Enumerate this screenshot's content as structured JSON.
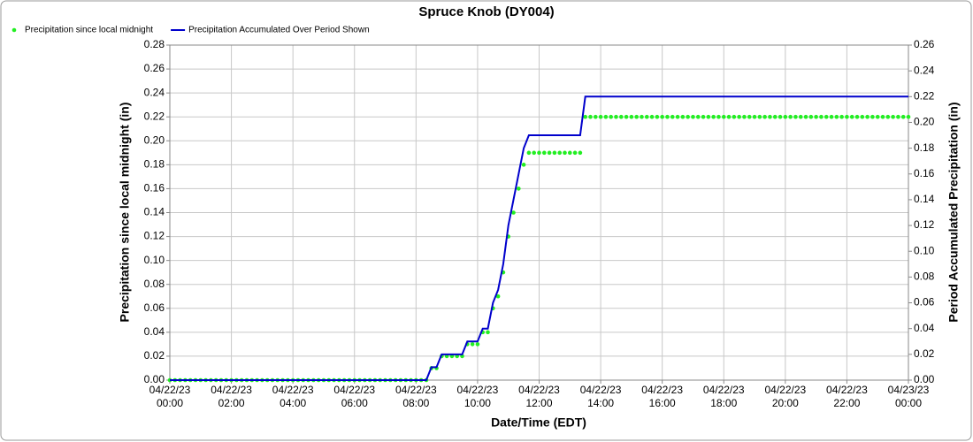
{
  "chart_data": {
    "type": "line",
    "title": "Spruce Knob (DY004)",
    "x_label": "Date/Time (EDT)",
    "y_label": "Precipitation since local midnight (in)",
    "y2_label": "Period Accumulated Precipitation (in)",
    "legend": "top-left",
    "grid": true,
    "xlim": [
      "04/22/23 00:00",
      "04/23/23 00:00"
    ],
    "xticks": [
      "04/22/23 00:00",
      "04/22/23 02:00",
      "04/22/23 04:00",
      "04/22/23 06:00",
      "04/22/23 08:00",
      "04/22/23 10:00",
      "04/22/23 12:00",
      "04/22/23 14:00",
      "04/22/23 16:00",
      "04/22/23 18:00",
      "04/22/23 20:00",
      "04/22/23 22:00",
      "04/23/23 00:00"
    ],
    "ylim": [
      0,
      0.28
    ],
    "yticks": [
      {
        "value": 0,
        "label": "0.00"
      },
      {
        "value": 0.02,
        "label": "0.02"
      },
      {
        "value": 0.04,
        "label": "0.04"
      },
      {
        "value": 0.06,
        "label": "0.06"
      },
      {
        "value": 0.08,
        "label": "0.08"
      },
      {
        "value": 0.1,
        "label": "0.10"
      },
      {
        "value": 0.12,
        "label": "0.12"
      },
      {
        "value": 0.14,
        "label": "0.14"
      },
      {
        "value": 0.16,
        "label": "0.16"
      },
      {
        "value": 0.18,
        "label": "0.18"
      },
      {
        "value": 0.2,
        "label": "0.20"
      },
      {
        "value": 0.22,
        "label": "0.22"
      },
      {
        "value": 0.24,
        "label": "0.24"
      },
      {
        "value": 0.26,
        "label": "0.26"
      },
      {
        "value": 0.28,
        "label": "0.28"
      }
    ],
    "y2lim": [
      0,
      0.26
    ],
    "y2ticks": [
      {
        "value": 0,
        "label": "0.00"
      },
      {
        "value": 0.02,
        "label": "0.02"
      },
      {
        "value": 0.04,
        "label": "0.04"
      },
      {
        "value": 0.06,
        "label": "0.06"
      },
      {
        "value": 0.08,
        "label": "0.08"
      },
      {
        "value": 0.1,
        "label": "0.10"
      },
      {
        "value": 0.12,
        "label": "0.12"
      },
      {
        "value": 0.14,
        "label": "0.14"
      },
      {
        "value": 0.16,
        "label": "0.16"
      },
      {
        "value": 0.18,
        "label": "0.18"
      },
      {
        "value": 0.2,
        "label": "0.20"
      },
      {
        "value": 0.22,
        "label": "0.22"
      },
      {
        "value": 0.24,
        "label": "0.24"
      },
      {
        "value": 0.26,
        "label": "0.26"
      }
    ],
    "x": [
      "04/22/23 00:00",
      "04/22/23 00:10",
      "04/22/23 00:20",
      "04/22/23 00:30",
      "04/22/23 00:40",
      "04/22/23 00:50",
      "04/22/23 01:00",
      "04/22/23 01:10",
      "04/22/23 01:20",
      "04/22/23 01:30",
      "04/22/23 01:40",
      "04/22/23 01:50",
      "04/22/23 02:00",
      "04/22/23 02:10",
      "04/22/23 02:20",
      "04/22/23 02:30",
      "04/22/23 02:40",
      "04/22/23 02:50",
      "04/22/23 03:00",
      "04/22/23 03:10",
      "04/22/23 03:20",
      "04/22/23 03:30",
      "04/22/23 03:40",
      "04/22/23 03:50",
      "04/22/23 04:00",
      "04/22/23 04:10",
      "04/22/23 04:20",
      "04/22/23 04:30",
      "04/22/23 04:40",
      "04/22/23 04:50",
      "04/22/23 05:00",
      "04/22/23 05:10",
      "04/22/23 05:20",
      "04/22/23 05:30",
      "04/22/23 05:40",
      "04/22/23 05:50",
      "04/22/23 06:00",
      "04/22/23 06:10",
      "04/22/23 06:20",
      "04/22/23 06:30",
      "04/22/23 06:40",
      "04/22/23 06:50",
      "04/22/23 07:00",
      "04/22/23 07:10",
      "04/22/23 07:20",
      "04/22/23 07:30",
      "04/22/23 07:40",
      "04/22/23 07:50",
      "04/22/23 08:00",
      "04/22/23 08:10",
      "04/22/23 08:20",
      "04/22/23 08:30",
      "04/22/23 08:40",
      "04/22/23 08:50",
      "04/22/23 09:00",
      "04/22/23 09:10",
      "04/22/23 09:20",
      "04/22/23 09:30",
      "04/22/23 09:40",
      "04/22/23 09:50",
      "04/22/23 10:00",
      "04/22/23 10:10",
      "04/22/23 10:20",
      "04/22/23 10:30",
      "04/22/23 10:40",
      "04/22/23 10:50",
      "04/22/23 11:00",
      "04/22/23 11:10",
      "04/22/23 11:20",
      "04/22/23 11:30",
      "04/22/23 11:40",
      "04/22/23 11:50",
      "04/22/23 12:00",
      "04/22/23 12:10",
      "04/22/23 12:20",
      "04/22/23 12:30",
      "04/22/23 12:40",
      "04/22/23 12:50",
      "04/22/23 13:00",
      "04/22/23 13:10",
      "04/22/23 13:20",
      "04/22/23 13:30",
      "04/22/23 13:40",
      "04/22/23 13:50",
      "04/22/23 14:00",
      "04/22/23 14:10",
      "04/22/23 14:20",
      "04/22/23 14:30",
      "04/22/23 14:40",
      "04/22/23 14:50",
      "04/22/23 15:00",
      "04/22/23 15:10",
      "04/22/23 15:20",
      "04/22/23 15:30",
      "04/22/23 15:40",
      "04/22/23 15:50",
      "04/22/23 16:00",
      "04/22/23 16:10",
      "04/22/23 16:20",
      "04/22/23 16:30",
      "04/22/23 16:40",
      "04/22/23 16:50",
      "04/22/23 17:00",
      "04/22/23 17:10",
      "04/22/23 17:20",
      "04/22/23 17:30",
      "04/22/23 17:40",
      "04/22/23 17:50",
      "04/22/23 18:00",
      "04/22/23 18:10",
      "04/22/23 18:20",
      "04/22/23 18:30",
      "04/22/23 18:40",
      "04/22/23 18:50",
      "04/22/23 19:00",
      "04/22/23 19:10",
      "04/22/23 19:20",
      "04/22/23 19:30",
      "04/22/23 19:40",
      "04/22/23 19:50",
      "04/22/23 20:00",
      "04/22/23 20:10",
      "04/22/23 20:20",
      "04/22/23 20:30",
      "04/22/23 20:40",
      "04/22/23 20:50",
      "04/22/23 21:00",
      "04/22/23 21:10",
      "04/22/23 21:20",
      "04/22/23 21:30",
      "04/22/23 21:40",
      "04/22/23 21:50",
      "04/22/23 22:00",
      "04/22/23 22:10",
      "04/22/23 22:20",
      "04/22/23 22:30",
      "04/22/23 22:40",
      "04/22/23 22:50",
      "04/22/23 23:00",
      "04/22/23 23:10",
      "04/22/23 23:20",
      "04/22/23 23:30",
      "04/22/23 23:40",
      "04/22/23 23:50",
      "04/23/23 00:00"
    ],
    "series": [
      {
        "name": "Precipitation since local midnight",
        "type": "scatter",
        "color": "#22ee22",
        "axis": "y",
        "values": [
          0,
          0,
          0,
          0,
          0,
          0,
          0,
          0,
          0,
          0,
          0,
          0,
          0,
          0,
          0,
          0,
          0,
          0,
          0,
          0,
          0,
          0,
          0,
          0,
          0,
          0,
          0,
          0,
          0,
          0,
          0,
          0,
          0,
          0,
          0,
          0,
          0,
          0,
          0,
          0,
          0,
          0,
          0,
          0,
          0,
          0,
          0,
          0,
          0,
          0,
          0,
          0.01,
          0.01,
          0.02,
          0.02,
          0.02,
          0.02,
          0.02,
          0.03,
          0.03,
          0.03,
          0.04,
          0.04,
          0.06,
          0.07,
          0.09,
          0.12,
          0.14,
          0.16,
          0.18,
          0.19,
          0.19,
          0.19,
          0.19,
          0.19,
          0.19,
          0.19,
          0.19,
          0.19,
          0.19,
          0.19,
          0.22,
          0.22,
          0.22,
          0.22,
          0.22,
          0.22,
          0.22,
          0.22,
          0.22,
          0.22,
          0.22,
          0.22,
          0.22,
          0.22,
          0.22,
          0.22,
          0.22,
          0.22,
          0.22,
          0.22,
          0.22,
          0.22,
          0.22,
          0.22,
          0.22,
          0.22,
          0.22,
          0.22,
          0.22,
          0.22,
          0.22,
          0.22,
          0.22,
          0.22,
          0.22,
          0.22,
          0.22,
          0.22,
          0.22,
          0.22,
          0.22,
          0.22,
          0.22,
          0.22,
          0.22,
          0.22,
          0.22,
          0.22,
          0.22,
          0.22,
          0.22,
          0.22,
          0.22,
          0.22,
          0.22,
          0.22,
          0.22,
          0.22,
          0.22,
          0.22,
          0.22,
          0.22,
          0.22,
          0.22
        ]
      },
      {
        "name": "Precipitation Accumulated Over Period Shown",
        "type": "line",
        "color": "#0000cc",
        "axis": "y2",
        "values": [
          0,
          0,
          0,
          0,
          0,
          0,
          0,
          0,
          0,
          0,
          0,
          0,
          0,
          0,
          0,
          0,
          0,
          0,
          0,
          0,
          0,
          0,
          0,
          0,
          0,
          0,
          0,
          0,
          0,
          0,
          0,
          0,
          0,
          0,
          0,
          0,
          0,
          0,
          0,
          0,
          0,
          0,
          0,
          0,
          0,
          0,
          0,
          0,
          0,
          0,
          0,
          0.01,
          0.01,
          0.02,
          0.02,
          0.02,
          0.02,
          0.02,
          0.03,
          0.03,
          0.03,
          0.04,
          0.04,
          0.06,
          0.07,
          0.09,
          0.12,
          0.14,
          0.16,
          0.18,
          0.19,
          0.19,
          0.19,
          0.19,
          0.19,
          0.19,
          0.19,
          0.19,
          0.19,
          0.19,
          0.19,
          0.22,
          0.22,
          0.22,
          0.22,
          0.22,
          0.22,
          0.22,
          0.22,
          0.22,
          0.22,
          0.22,
          0.22,
          0.22,
          0.22,
          0.22,
          0.22,
          0.22,
          0.22,
          0.22,
          0.22,
          0.22,
          0.22,
          0.22,
          0.22,
          0.22,
          0.22,
          0.22,
          0.22,
          0.22,
          0.22,
          0.22,
          0.22,
          0.22,
          0.22,
          0.22,
          0.22,
          0.22,
          0.22,
          0.22,
          0.22,
          0.22,
          0.22,
          0.22,
          0.22,
          0.22,
          0.22,
          0.22,
          0.22,
          0.22,
          0.22,
          0.22,
          0.22,
          0.22,
          0.22,
          0.22,
          0.22,
          0.22,
          0.22,
          0.22,
          0.22,
          0.22,
          0.22,
          0.22,
          0.22
        ]
      }
    ]
  }
}
